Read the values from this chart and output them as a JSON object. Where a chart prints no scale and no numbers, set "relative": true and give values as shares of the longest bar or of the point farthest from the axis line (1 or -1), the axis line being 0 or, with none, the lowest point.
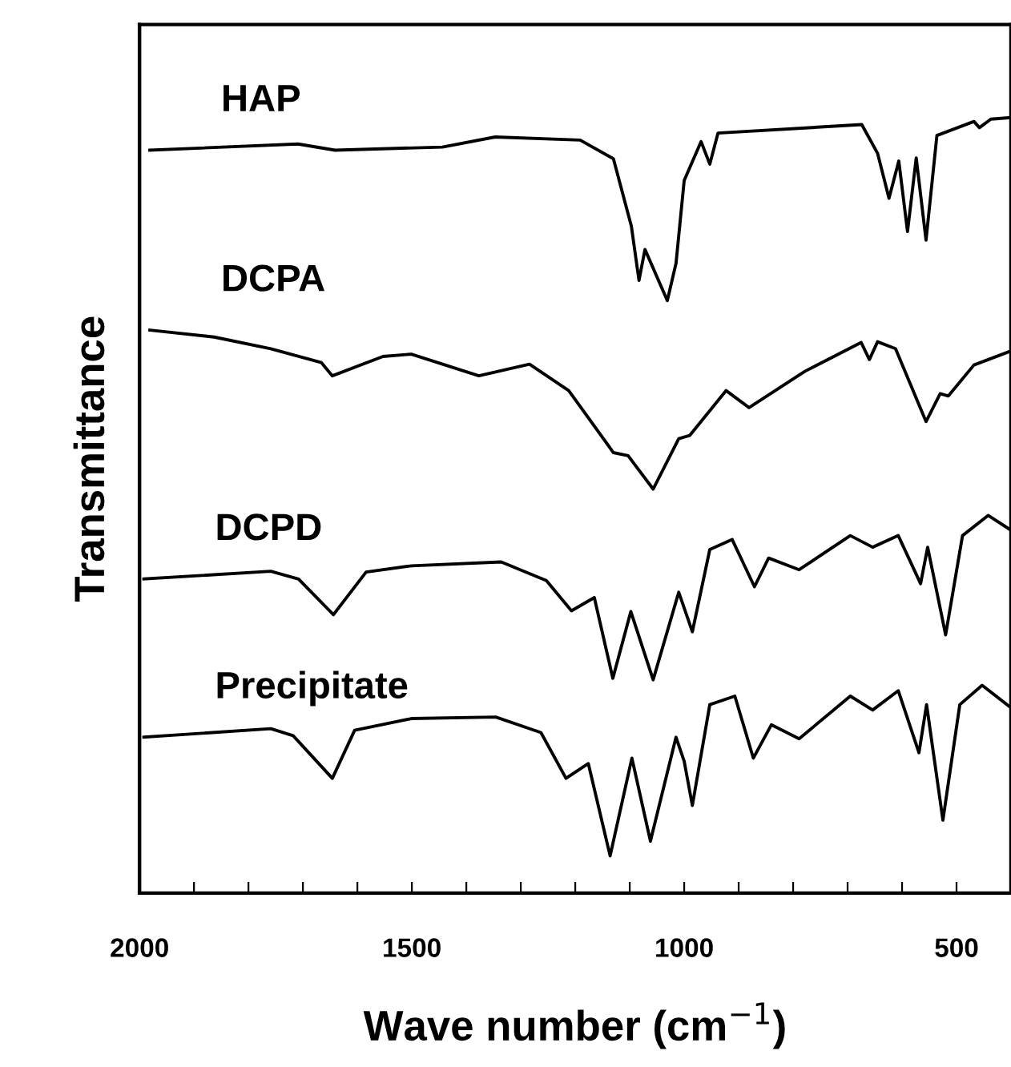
{
  "chart_data": {
    "type": "line",
    "relative": true,
    "xlabel": "Wave number (cm$^{−1}$)",
    "ylabel": "Transmittance",
    "xlim": [
      2000,
      400
    ],
    "xticks": [
      2000,
      {
        "value": 1900,
        "label": null
      },
      {
        "value": 1800,
        "label": null
      },
      {
        "value": 1700,
        "label": null
      },
      {
        "value": 1600,
        "label": null
      },
      1500,
      {
        "value": 1400,
        "label": null
      },
      {
        "value": 1300,
        "label": null
      },
      {
        "value": 1200,
        "label": null
      },
      {
        "value": 1100,
        "label": null
      },
      1000,
      {
        "value": 900,
        "label": null
      },
      {
        "value": 800,
        "label": null
      },
      {
        "value": 700,
        "label": null
      },
      {
        "value": 600,
        "label": null
      },
      500
    ],
    "grid": false,
    "legend": false,
    "marker": "none",
    "line_style": "solid",
    "series": [
      {
        "name": "HAP",
        "color": "#000000",
        "x": [
          1981,
          1709,
          1641,
          1444,
          1347,
          1191,
          1130,
          1097,
          1083,
          1072,
          1031,
          1015,
          1000,
          969,
          953,
          938,
          674,
          645,
          624,
          606,
          590,
          574,
          556,
          536,
          468,
          458,
          437,
          400
        ],
        "values": [
          0.958,
          0.966,
          0.958,
          0.962,
          0.975,
          0.971,
          0.947,
          0.86,
          0.79,
          0.83,
          0.764,
          0.812,
          0.919,
          0.969,
          0.94,
          0.98,
          0.991,
          0.954,
          0.896,
          0.944,
          0.853,
          0.948,
          0.842,
          0.977,
          0.995,
          0.987,
          0.998,
          1.0
        ]
      },
      {
        "name": "DCPA",
        "color": "#000000",
        "x": [
          1981,
          1863,
          1759,
          1666,
          1646,
          1553,
          1501,
          1377,
          1284,
          1212,
          1130,
          1103,
          1057,
          1010,
          990,
          923,
          881,
          778,
          675,
          660,
          645,
          612,
          556,
          530,
          515,
          468,
          400
        ],
        "values": [
          0.726,
          0.717,
          0.702,
          0.684,
          0.667,
          0.692,
          0.695,
          0.667,
          0.682,
          0.648,
          0.568,
          0.564,
          0.521,
          0.586,
          0.59,
          0.648,
          0.626,
          0.673,
          0.71,
          0.688,
          0.711,
          0.702,
          0.608,
          0.644,
          0.641,
          0.681,
          0.699
        ]
      },
      {
        "name": "DCPD",
        "color": "#000000",
        "x": [
          1992,
          1759,
          1708,
          1644,
          1584,
          1501,
          1336,
          1253,
          1207,
          1165,
          1131,
          1098,
          1057,
          1010,
          985,
          953,
          912,
          871,
          845,
          789,
          695,
          654,
          607,
          566,
          553,
          520,
          489,
          442,
          400
        ],
        "values": [
          0.405,
          0.415,
          0.405,
          0.359,
          0.414,
          0.422,
          0.427,
          0.403,
          0.364,
          0.381,
          0.277,
          0.363,
          0.275,
          0.388,
          0.337,
          0.443,
          0.456,
          0.395,
          0.432,
          0.417,
          0.461,
          0.446,
          0.461,
          0.399,
          0.446,
          0.333,
          0.461,
          0.487,
          0.468
        ]
      },
      {
        "name": "Precipitate",
        "color": "#000000",
        "x": [
          1992,
          1759,
          1718,
          1646,
          1605,
          1501,
          1346,
          1263,
          1217,
          1176,
          1136,
          1096,
          1062,
          1015,
          1000,
          985,
          953,
          907,
          873,
          840,
          789,
          695,
          654,
          607,
          569,
          555,
          525,
          494,
          453,
          400
        ],
        "values": [
          0.201,
          0.212,
          0.203,
          0.148,
          0.21,
          0.225,
          0.227,
          0.207,
          0.148,
          0.167,
          0.048,
          0.174,
          0.067,
          0.201,
          0.17,
          0.113,
          0.243,
          0.254,
          0.174,
          0.217,
          0.199,
          0.254,
          0.236,
          0.261,
          0.181,
          0.243,
          0.094,
          0.243,
          0.268,
          0.239
        ]
      }
    ]
  }
}
